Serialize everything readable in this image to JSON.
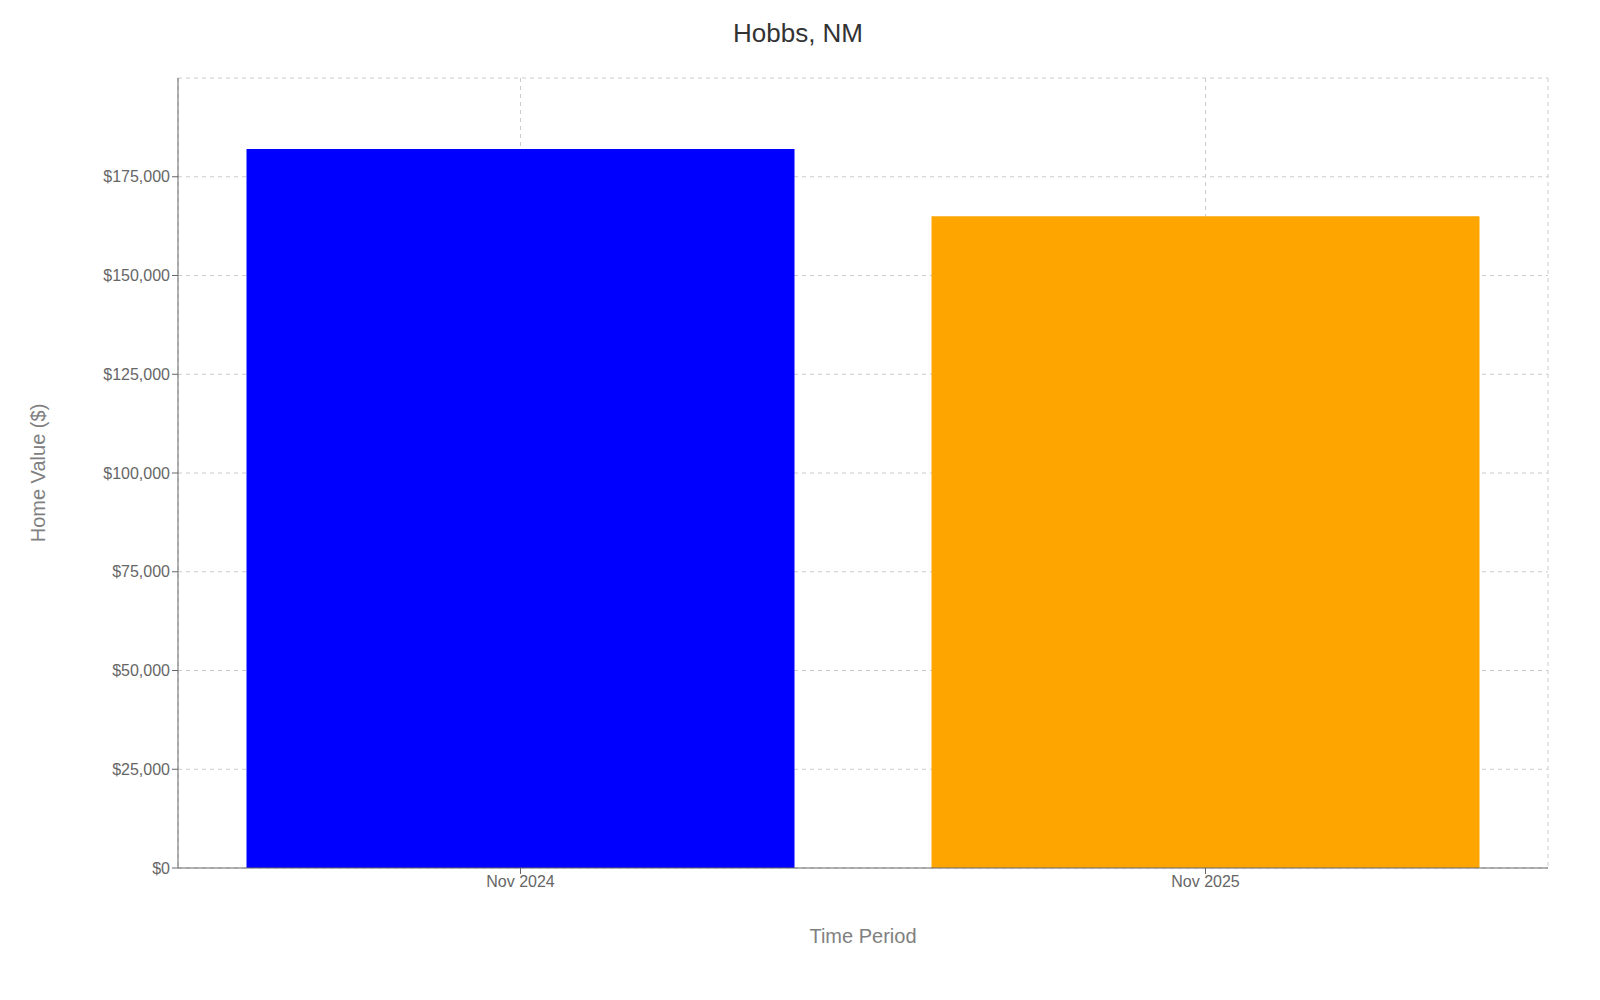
{
  "chart_data": {
    "type": "bar",
    "title": "Hobbs, NM",
    "xlabel": "Time Period",
    "ylabel": "Home Value ($)",
    "categories": [
      "Nov 2024",
      "Nov 2025"
    ],
    "values": [
      182000,
      165000
    ],
    "colors": [
      "#0000ff",
      "#ffa500"
    ],
    "ylim": [
      0,
      200000
    ],
    "yticks": [
      {
        "value": 0,
        "label": "$0"
      },
      {
        "value": 25000,
        "label": "$25,000"
      },
      {
        "value": 50000,
        "label": "$50,000"
      },
      {
        "value": 75000,
        "label": "$75,000"
      },
      {
        "value": 100000,
        "label": "$100,000"
      },
      {
        "value": 125000,
        "label": "$125,000"
      },
      {
        "value": 150000,
        "label": "$150,000"
      },
      {
        "value": 175000,
        "label": "$175,000"
      }
    ],
    "grid": true
  }
}
